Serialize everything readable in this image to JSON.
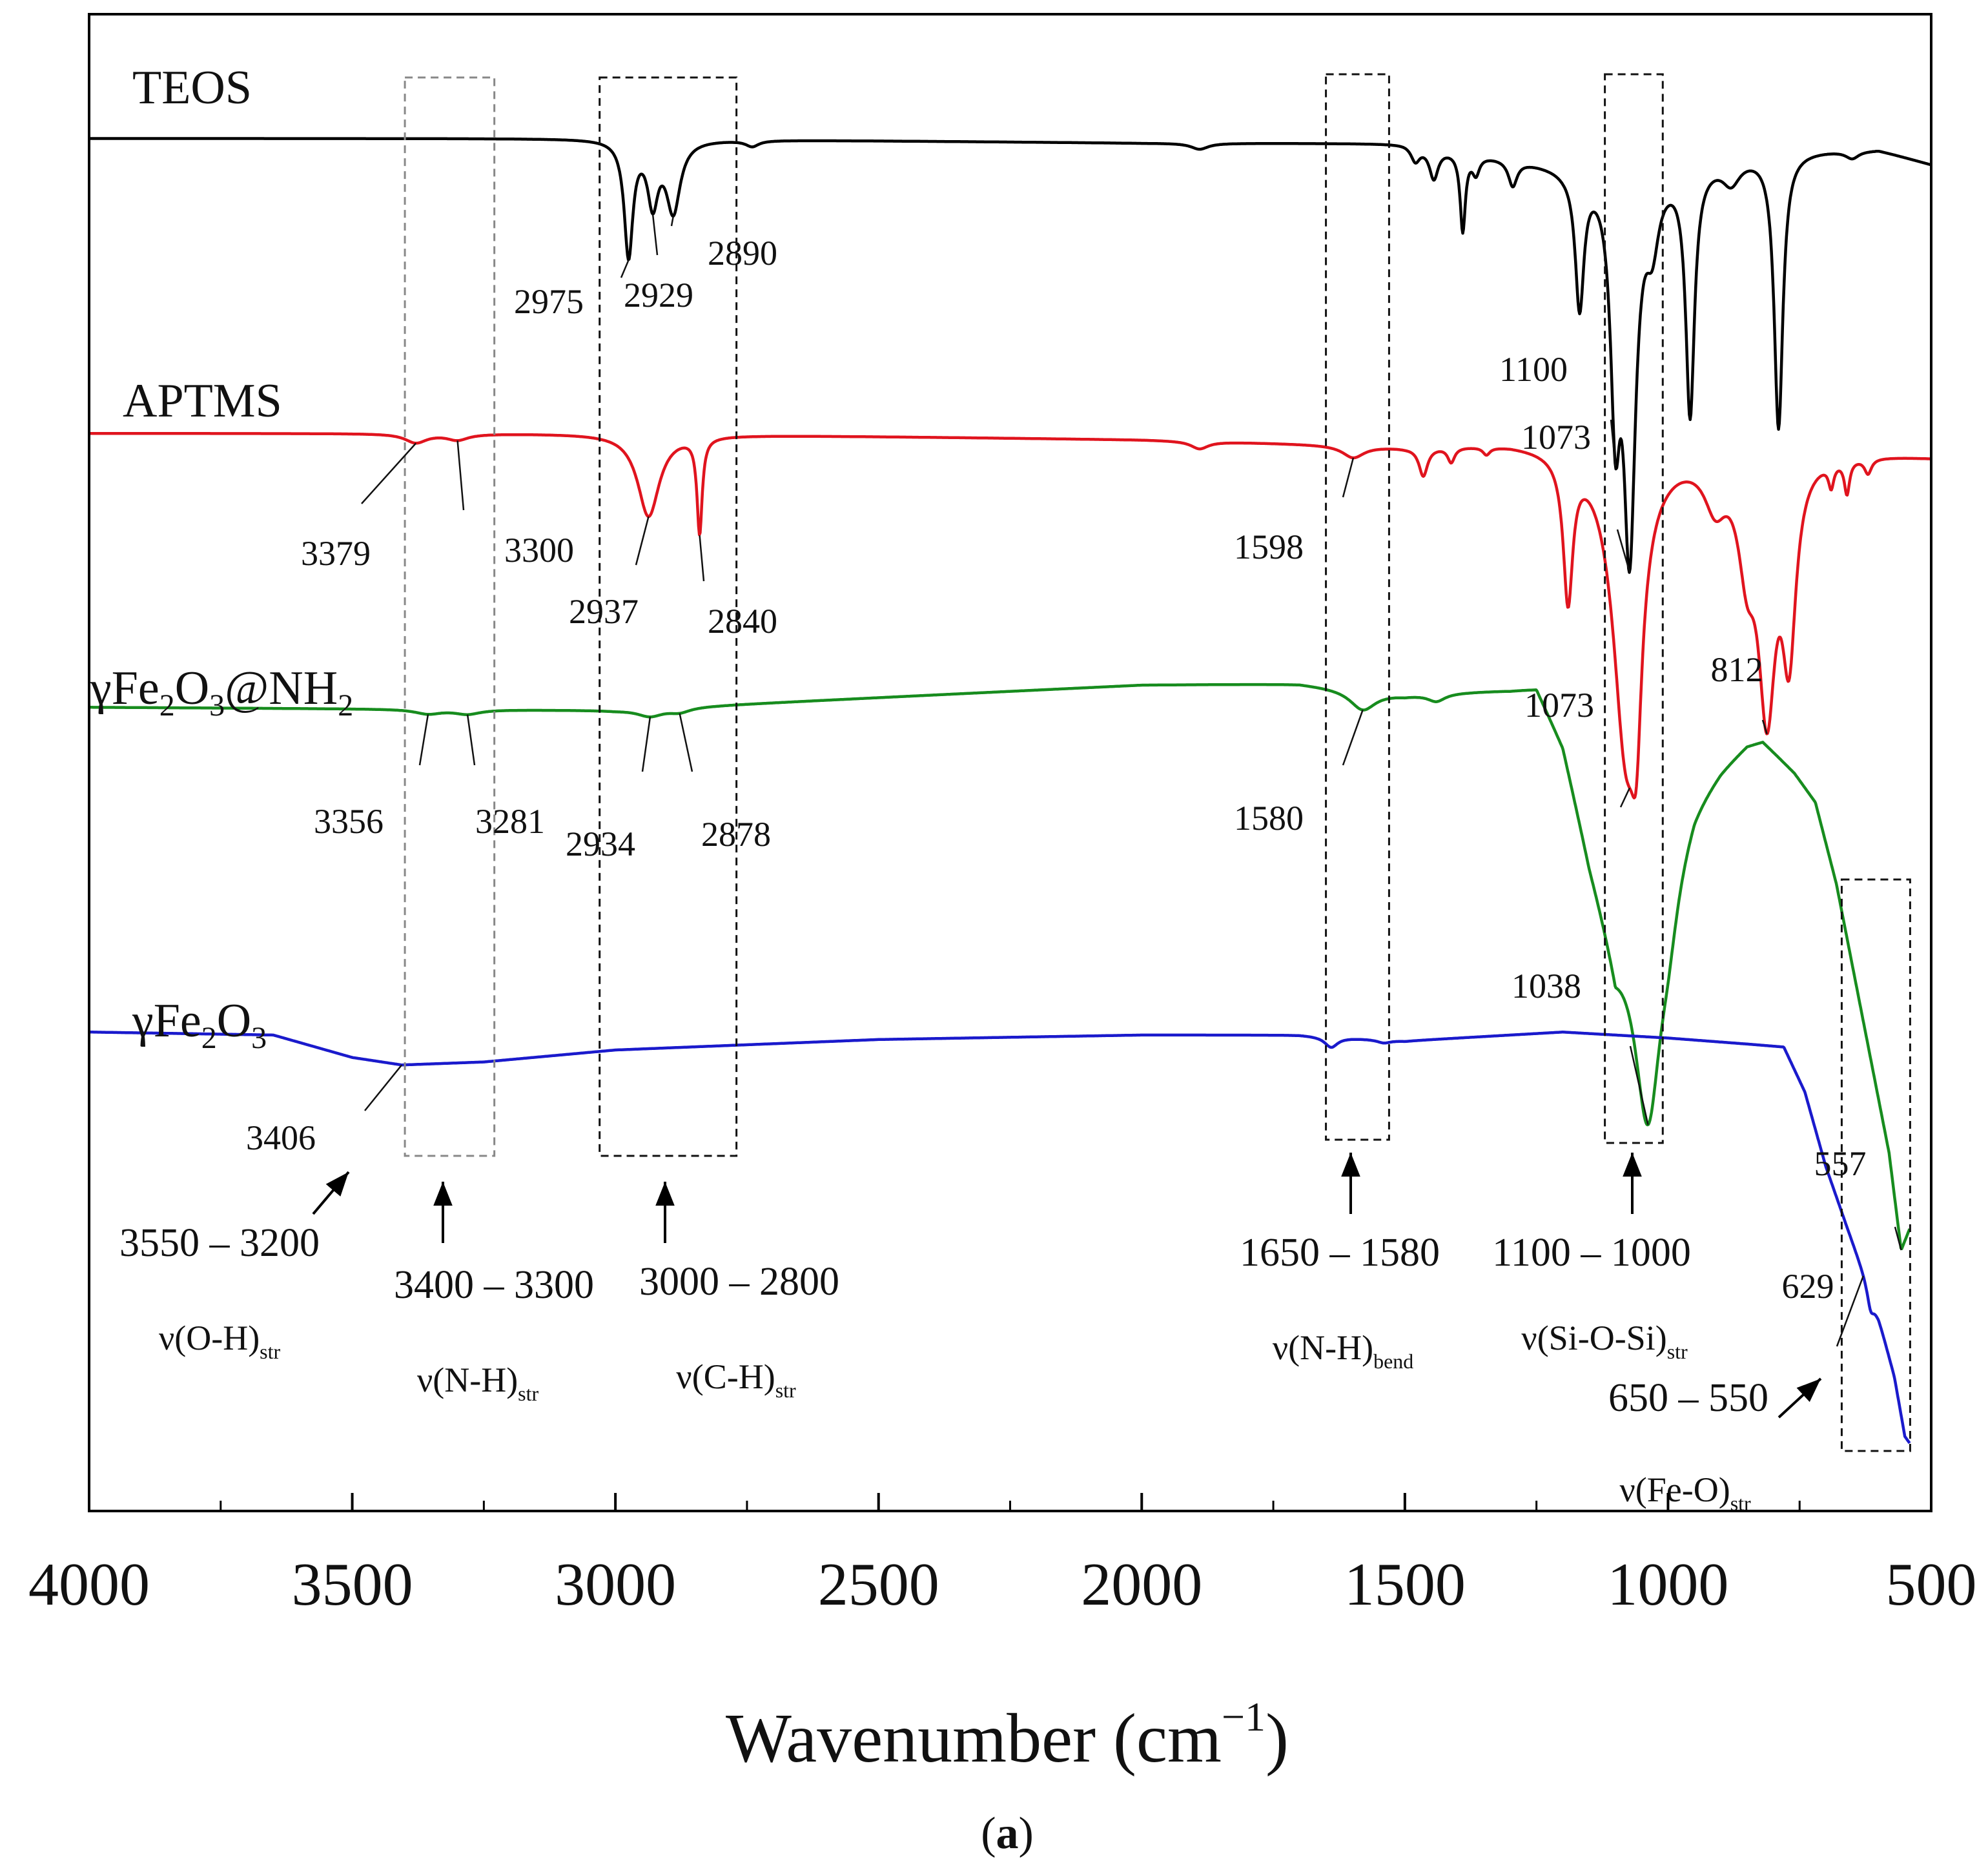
{
  "figure_label": {
    "open": "(",
    "letter": "a",
    "close": ")"
  },
  "chart_data": {
    "type": "line",
    "title": "",
    "xlabel": "Wavenumber",
    "xlabel_unit": {
      "open": "(cm",
      "sup": "−1",
      "close": ")"
    },
    "ylabel": "",
    "xlim": [
      4000,
      500
    ],
    "ylim": [
      0,
      1
    ],
    "x_ticks": [
      4000,
      3500,
      3000,
      2500,
      2000,
      1500,
      1000,
      500
    ],
    "grid": false,
    "legend": "none",
    "series": [
      {
        "name": "TEOS",
        "label": {
          "parts": [
            {
              "t": "TEOS"
            }
          ]
        },
        "color": "#000000",
        "baseline": 0.917,
        "drift": [
          [
            4000,
            0.917
          ],
          [
            3000,
            0.917
          ],
          [
            2000,
            0.914
          ],
          [
            1500,
            0.914
          ],
          [
            1200,
            0.9
          ],
          [
            1000,
            0.9
          ],
          [
            800,
            0.91
          ],
          [
            600,
            0.91
          ],
          [
            500,
            0.9
          ]
        ],
        "bands": [
          {
            "c": 2975,
            "d": 0.077,
            "w": 10
          },
          {
            "c": 2929,
            "d": 0.04,
            "w": 12
          },
          {
            "c": 2890,
            "d": 0.047,
            "w": 16
          },
          {
            "c": 2740,
            "d": 0.004,
            "w": 15
          },
          {
            "c": 1890,
            "d": 0.004,
            "w": 20
          },
          {
            "c": 1480,
            "d": 0.01,
            "w": 10
          },
          {
            "c": 1445,
            "d": 0.02,
            "w": 10
          },
          {
            "c": 1390,
            "d": 0.052,
            "w": 6
          },
          {
            "c": 1365,
            "d": 0.012,
            "w": 8
          },
          {
            "c": 1295,
            "d": 0.017,
            "w": 10
          },
          {
            "c": 1168,
            "d": 0.09,
            "w": 10
          },
          {
            "c": 1100,
            "d": 0.145,
            "w": 11
          },
          {
            "c": 1073,
            "d": 0.245,
            "w": 14
          },
          {
            "c": 1030,
            "d": 0.04,
            "w": 15
          },
          {
            "c": 958,
            "d": 0.165,
            "w": 10
          },
          {
            "c": 880,
            "d": 0.015,
            "w": 20
          },
          {
            "c": 790,
            "d": 0.185,
            "w": 10
          },
          {
            "c": 650,
            "d": 0.005,
            "w": 15
          }
        ]
      },
      {
        "name": "APTMS",
        "label": {
          "parts": [
            {
              "t": "APTMS"
            }
          ]
        },
        "color": "#e0141e",
        "baseline": 0.72,
        "drift": [
          [
            4000,
            0.72
          ],
          [
            3000,
            0.72
          ],
          [
            2000,
            0.716
          ],
          [
            1500,
            0.712
          ],
          [
            1300,
            0.715
          ],
          [
            1000,
            0.712
          ],
          [
            800,
            0.712
          ],
          [
            500,
            0.705
          ]
        ],
        "bands": [
          {
            "c": 3379,
            "d": 0.006,
            "w": 25
          },
          {
            "c": 3300,
            "d": 0.004,
            "w": 25
          },
          {
            "c": 2937,
            "d": 0.055,
            "w": 25
          },
          {
            "c": 2840,
            "d": 0.064,
            "w": 6
          },
          {
            "c": 1890,
            "d": 0.005,
            "w": 20
          },
          {
            "c": 1598,
            "d": 0.008,
            "w": 25
          },
          {
            "c": 1465,
            "d": 0.019,
            "w": 10
          },
          {
            "c": 1412,
            "d": 0.01,
            "w": 8
          },
          {
            "c": 1345,
            "d": 0.005,
            "w": 8
          },
          {
            "c": 1190,
            "d": 0.095,
            "w": 11
          },
          {
            "c": 1080,
            "d": 0.195,
            "w": 30
          },
          {
            "c": 1060,
            "d": 0.09,
            "w": 12
          },
          {
            "c": 910,
            "d": 0.03,
            "w": 25
          },
          {
            "c": 850,
            "d": 0.06,
            "w": 20
          },
          {
            "c": 812,
            "d": 0.16,
            "w": 20
          },
          {
            "c": 770,
            "d": 0.12,
            "w": 16
          },
          {
            "c": 690,
            "d": 0.015,
            "w": 6
          },
          {
            "c": 660,
            "d": 0.022,
            "w": 6
          },
          {
            "c": 620,
            "d": 0.01,
            "w": 8
          }
        ]
      },
      {
        "name": "γFe2O3@NH2",
        "label": {
          "parts": [
            {
              "t": "γFe"
            },
            {
              "t": "2",
              "sub": true
            },
            {
              "t": "O"
            },
            {
              "t": "3",
              "sub": true
            },
            {
              "t": "@NH"
            },
            {
              "t": "2",
              "sub": true
            }
          ]
        },
        "color": "#178c1e",
        "baseline": 0.537,
        "drift": [
          [
            4000,
            0.537
          ],
          [
            3000,
            0.535
          ],
          [
            2000,
            0.552
          ],
          [
            1700,
            0.553
          ],
          [
            1500,
            0.546
          ],
          [
            1300,
            0.55
          ],
          [
            1250,
            0.552
          ],
          [
            1200,
            0.515
          ],
          [
            1150,
            0.44
          ],
          [
            1100,
            0.38
          ],
          [
            1000,
            0.44
          ],
          [
            950,
            0.48
          ],
          [
            900,
            0.5
          ],
          [
            850,
            0.515
          ],
          [
            820,
            0.517
          ],
          [
            760,
            0.495
          ],
          [
            720,
            0.475
          ],
          [
            680,
            0.42
          ],
          [
            630,
            0.33
          ],
          [
            580,
            0.24
          ],
          [
            557,
            0.175
          ],
          [
            540,
            0.19
          ]
        ],
        "bands": [
          {
            "c": 3356,
            "d": 0.003,
            "w": 30
          },
          {
            "c": 3281,
            "d": 0.003,
            "w": 30
          },
          {
            "c": 2934,
            "d": 0.005,
            "w": 30
          },
          {
            "c": 2878,
            "d": 0.003,
            "w": 25
          },
          {
            "c": 1580,
            "d": 0.013,
            "w": 30
          },
          {
            "c": 1440,
            "d": 0.005,
            "w": 20
          },
          {
            "c": 1038,
            "d": 0.15,
            "w": 30
          },
          {
            "c": 1000,
            "d": 0.03,
            "w": 25
          }
        ]
      },
      {
        "name": "γFe2O3",
        "label": {
          "parts": [
            {
              "t": "γFe"
            },
            {
              "t": "2",
              "sub": true
            },
            {
              "t": "O"
            },
            {
              "t": "3",
              "sub": true
            }
          ]
        },
        "color": "#1a1acc",
        "baseline": 0.32,
        "drift": [
          [
            4000,
            0.32
          ],
          [
            3650,
            0.318
          ],
          [
            3500,
            0.303
          ],
          [
            3406,
            0.298
          ],
          [
            3250,
            0.3
          ],
          [
            3000,
            0.308
          ],
          [
            2500,
            0.315
          ],
          [
            2000,
            0.318
          ],
          [
            1700,
            0.318
          ],
          [
            1500,
            0.314
          ],
          [
            1300,
            0.318
          ],
          [
            1200,
            0.32
          ],
          [
            1000,
            0.316
          ],
          [
            850,
            0.312
          ],
          [
            780,
            0.31
          ],
          [
            740,
            0.28
          ],
          [
            700,
            0.23
          ],
          [
            660,
            0.19
          ],
          [
            629,
            0.16
          ],
          [
            600,
            0.13
          ],
          [
            570,
            0.09
          ],
          [
            550,
            0.05
          ],
          [
            540,
            0.045
          ]
        ],
        "bands": [
          {
            "c": 1640,
            "d": 0.007,
            "w": 15
          },
          {
            "c": 1540,
            "d": 0.002,
            "w": 15
          },
          {
            "c": 615,
            "d": 0.012,
            "w": 8
          }
        ]
      }
    ],
    "peak_annotations": [
      {
        "label": "2975",
        "series": 0,
        "x": 2975
      },
      {
        "label": "2929",
        "series": 0,
        "x": 2929
      },
      {
        "label": "2890",
        "series": 0,
        "x": 2890
      },
      {
        "label": "1100",
        "series": 0,
        "x": 1100
      },
      {
        "label": "1073",
        "series": 0,
        "x": 1073
      },
      {
        "label": "3379",
        "series": 1,
        "x": 3379
      },
      {
        "label": "3300",
        "series": 1,
        "x": 3300
      },
      {
        "label": "2937",
        "series": 1,
        "x": 2937
      },
      {
        "label": "2840",
        "series": 1,
        "x": 2840
      },
      {
        "label": "1598",
        "series": 1,
        "x": 1598
      },
      {
        "label": "1073",
        "series": 1,
        "x": 1073
      },
      {
        "label": "812",
        "series": 1,
        "x": 812
      },
      {
        "label": "3356",
        "series": 2,
        "x": 3356
      },
      {
        "label": "3281",
        "series": 2,
        "x": 3281
      },
      {
        "label": "2934",
        "series": 2,
        "x": 2934
      },
      {
        "label": "2878",
        "series": 2,
        "x": 2878
      },
      {
        "label": "1580",
        "series": 2,
        "x": 1580
      },
      {
        "label": "1038",
        "series": 2,
        "x": 1038
      },
      {
        "label": "557",
        "series": 2,
        "x": 557
      },
      {
        "label": "3406",
        "series": 3,
        "x": 3406
      },
      {
        "label": "629",
        "series": 3,
        "x": 629
      }
    ],
    "regions": [
      {
        "range_label": "3550 – 3200",
        "mode": [
          "ν(O-H)",
          "str"
        ],
        "style": "arrow"
      },
      {
        "range_label": "3400 – 3300",
        "mode": [
          "ν(N-H)",
          "str"
        ],
        "box": [
          3400,
          3230
        ]
      },
      {
        "range_label": "3000 – 2800",
        "mode": [
          "ν(C-H)",
          "str"
        ],
        "box": [
          3030,
          2770
        ]
      },
      {
        "range_label": "1650 – 1580",
        "mode": [
          "ν(N-H)",
          "bend"
        ],
        "box": [
          1650,
          1530
        ]
      },
      {
        "range_label": "1100 – 1000",
        "mode": [
          "ν(Si-O-Si)",
          "str"
        ],
        "box": [
          1120,
          1010
        ]
      },
      {
        "range_label": "650 – 550",
        "mode": [
          "ν(Fe-O)",
          "str"
        ],
        "box": [
          670,
          540
        ]
      }
    ]
  }
}
